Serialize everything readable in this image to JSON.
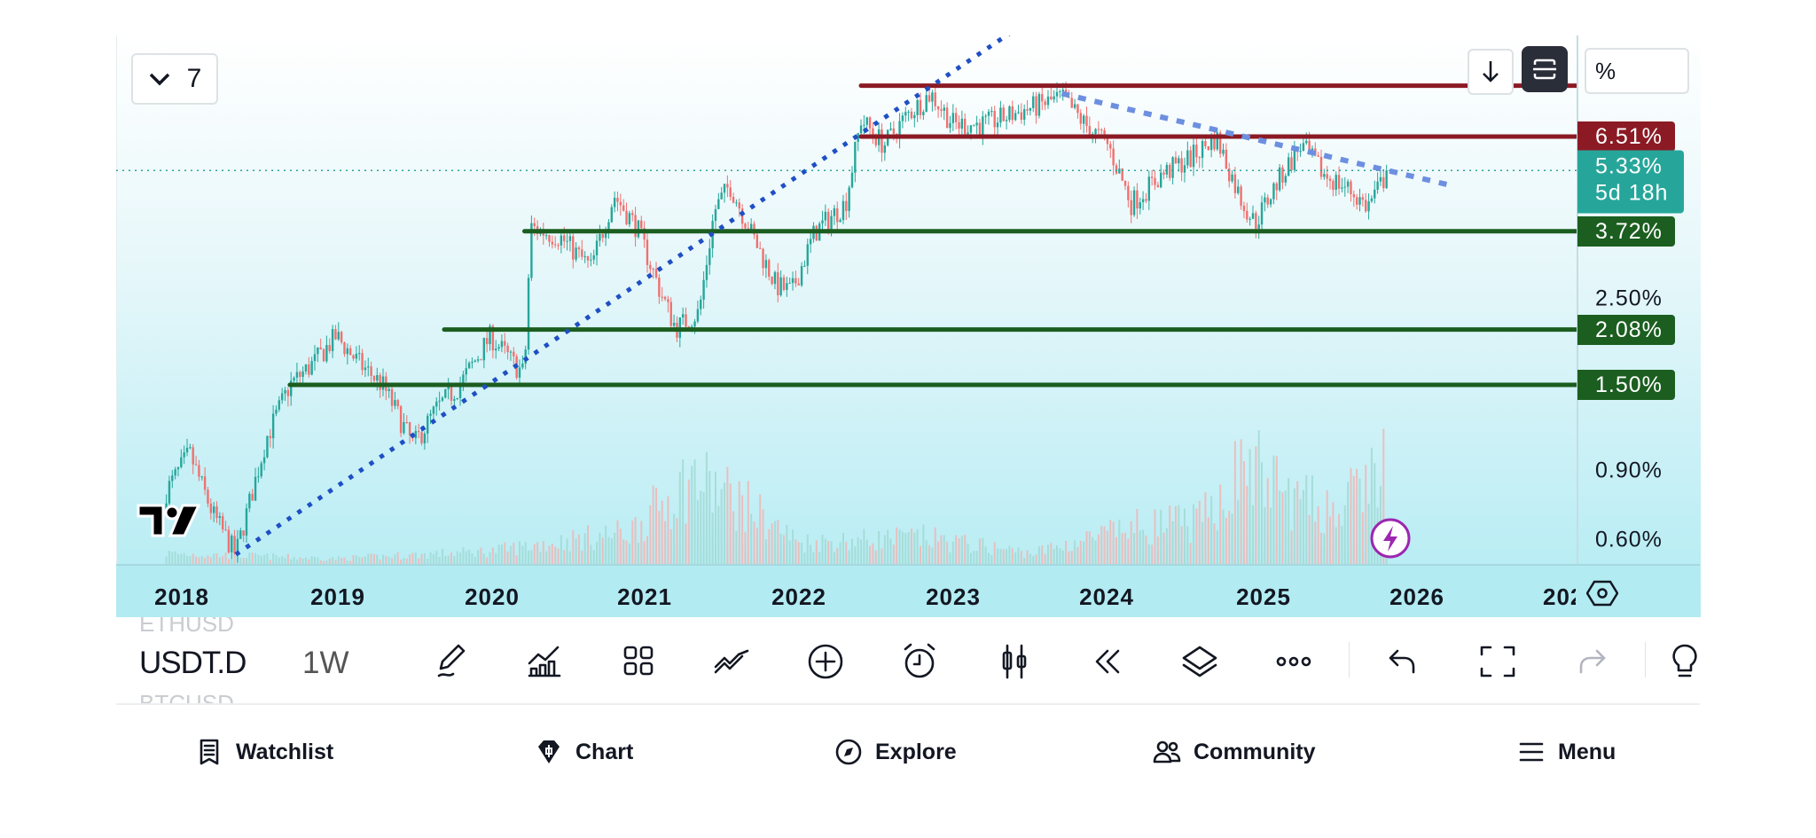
{
  "top_controls": {
    "collapse_count": "7",
    "scale_mode": "%"
  },
  "price_axis": {
    "ticks": [
      "2.50%",
      "0.90%",
      "0.60%"
    ],
    "tags": [
      {
        "label": "6.51%",
        "color": "#8b1a24"
      },
      {
        "label": "3.72%",
        "color": "#1b5e20"
      },
      {
        "label": "2.08%",
        "color": "#1b5e20"
      },
      {
        "label": "1.50%",
        "color": "#1b5e20"
      }
    ],
    "current": {
      "price": "5.33%",
      "countdown": "5d 18h",
      "color": "#26a69a"
    }
  },
  "time_axis": {
    "labels": [
      "2018",
      "2019",
      "2020",
      "2021",
      "2022",
      "2023",
      "2024",
      "2025",
      "2026",
      "202"
    ]
  },
  "toolbar": {
    "symbol": "USDT.D",
    "interval": "1W",
    "prev_symbol": "ETHUSD",
    "next_symbol": "BTCUSD",
    "icons": [
      "draw-pen-icon",
      "indicators-icon",
      "templates-grid-icon",
      "trend-lines-icon",
      "add-plus-icon",
      "alert-clock-icon",
      "chart-type-candles-icon",
      "replay-icon",
      "layers-icon",
      "more-dots-icon",
      "undo-icon",
      "fullscreen-icon",
      "redo-icon",
      "idea-bulb-icon"
    ]
  },
  "bottom_nav": [
    {
      "label": "Watchlist",
      "icon": "watchlist-icon"
    },
    {
      "label": "Chart",
      "icon": "chart-icon"
    },
    {
      "label": "Explore",
      "icon": "compass-icon"
    },
    {
      "label": "Community",
      "icon": "community-icon"
    },
    {
      "label": "Menu",
      "icon": "menu-icon"
    }
  ],
  "chart_data": {
    "type": "candlestick",
    "symbol": "USDT.D",
    "interval": "1W",
    "yscale": "log",
    "xlim": [
      2017.85,
      2027.0
    ],
    "ylim": [
      0.5,
      9.5
    ],
    "colors": {
      "up": "#26a69a",
      "down": "#f0706f",
      "support": "#1b5e20",
      "resistance": "#8b1a24",
      "trend": "#1f4fc4",
      "trend_light": "#6d8fe0"
    },
    "approx_price_path": [
      [
        2017.9,
        0.8
      ],
      [
        2018.05,
        1.0
      ],
      [
        2018.2,
        0.7
      ],
      [
        2018.35,
        0.55
      ],
      [
        2018.55,
        1.1
      ],
      [
        2018.7,
        1.5
      ],
      [
        2018.85,
        1.7
      ],
      [
        2019.0,
        2.0
      ],
      [
        2019.15,
        1.7
      ],
      [
        2019.3,
        1.5
      ],
      [
        2019.5,
        1.05
      ],
      [
        2019.65,
        1.3
      ],
      [
        2019.8,
        1.5
      ],
      [
        2020.0,
        2.0
      ],
      [
        2020.15,
        1.7
      ],
      [
        2020.22,
        1.6
      ],
      [
        2020.26,
        3.8
      ],
      [
        2020.45,
        3.6
      ],
      [
        2020.65,
        3.0
      ],
      [
        2020.8,
        4.6
      ],
      [
        2020.95,
        3.8
      ],
      [
        2021.1,
        2.6
      ],
      [
        2021.2,
        2.1
      ],
      [
        2021.35,
        2.3
      ],
      [
        2021.45,
        4.2
      ],
      [
        2021.55,
        4.9
      ],
      [
        2021.7,
        3.6
      ],
      [
        2021.85,
        2.7
      ],
      [
        2021.95,
        2.6
      ],
      [
        2022.1,
        3.7
      ],
      [
        2022.3,
        4.4
      ],
      [
        2022.4,
        7.2
      ],
      [
        2022.55,
        6.2
      ],
      [
        2022.7,
        7.4
      ],
      [
        2022.85,
        8.4
      ],
      [
        2023.0,
        7.0
      ],
      [
        2023.2,
        7.0
      ],
      [
        2023.45,
        7.6
      ],
      [
        2023.7,
        8.2
      ],
      [
        2023.85,
        7.0
      ],
      [
        2024.0,
        6.2
      ],
      [
        2024.15,
        4.4
      ],
      [
        2024.35,
        5.2
      ],
      [
        2024.55,
        5.8
      ],
      [
        2024.7,
        6.5
      ],
      [
        2024.85,
        4.6
      ],
      [
        2024.95,
        3.9
      ],
      [
        2025.1,
        5.0
      ],
      [
        2025.25,
        6.2
      ],
      [
        2025.4,
        5.2
      ],
      [
        2025.55,
        4.8
      ],
      [
        2025.68,
        4.3
      ],
      [
        2025.82,
        5.33
      ]
    ],
    "approx_relative_volume": [
      [
        2017.9,
        0.1
      ],
      [
        2019.0,
        0.05
      ],
      [
        2020.0,
        0.12
      ],
      [
        2020.9,
        0.3
      ],
      [
        2021.3,
        0.8
      ],
      [
        2021.6,
        0.6
      ],
      [
        2022.0,
        0.2
      ],
      [
        2022.8,
        0.25
      ],
      [
        2023.5,
        0.1
      ],
      [
        2024.2,
        0.35
      ],
      [
        2024.6,
        0.4
      ],
      [
        2024.9,
        0.95
      ],
      [
        2025.2,
        0.6
      ],
      [
        2025.5,
        0.5
      ],
      [
        2025.8,
        0.95
      ]
    ],
    "horizontal_levels": [
      {
        "value": 8.8,
        "from": 2022.4,
        "kind": "resistance"
      },
      {
        "value": 6.51,
        "from": 2022.4,
        "kind": "resistance"
      },
      {
        "value": 3.72,
        "from": 2020.22,
        "kind": "support"
      },
      {
        "value": 2.08,
        "from": 2019.7,
        "kind": "support"
      },
      {
        "value": 1.5,
        "from": 2018.7,
        "kind": "support"
      }
    ],
    "trend_lines": [
      {
        "from": [
          2018.35,
          0.55
        ],
        "to": [
          2024.35,
          22.0
        ],
        "style": "dotted",
        "kind": "trend"
      },
      {
        "from": [
          2023.7,
          8.4
        ],
        "to": [
          2026.2,
          4.9
        ],
        "style": "dotted",
        "kind": "trend_light"
      }
    ],
    "last_price": 5.33
  }
}
